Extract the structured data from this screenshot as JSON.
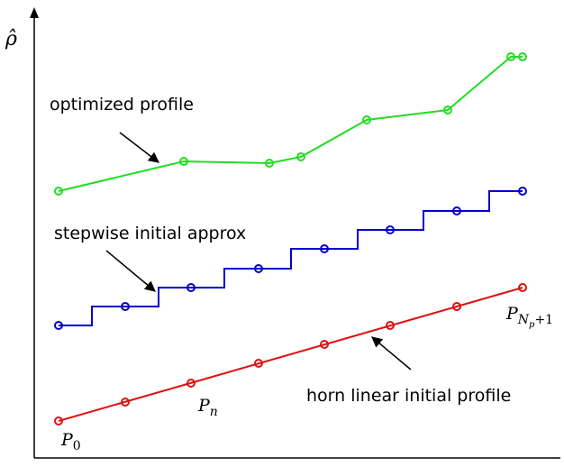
{
  "axis_label": "ρ̂",
  "labels": {
    "optimized": "optimized profile",
    "stepwise": "stepwise initial approx",
    "horn": "horn linear initial profile"
  },
  "points": {
    "p0": {
      "base": "P",
      "sub": "0"
    },
    "pn": {
      "base": "P",
      "sub": "n"
    },
    "pend": {
      "base": "P",
      "sub": "N",
      "subsub": "p",
      "tail": "+1"
    }
  }
}
